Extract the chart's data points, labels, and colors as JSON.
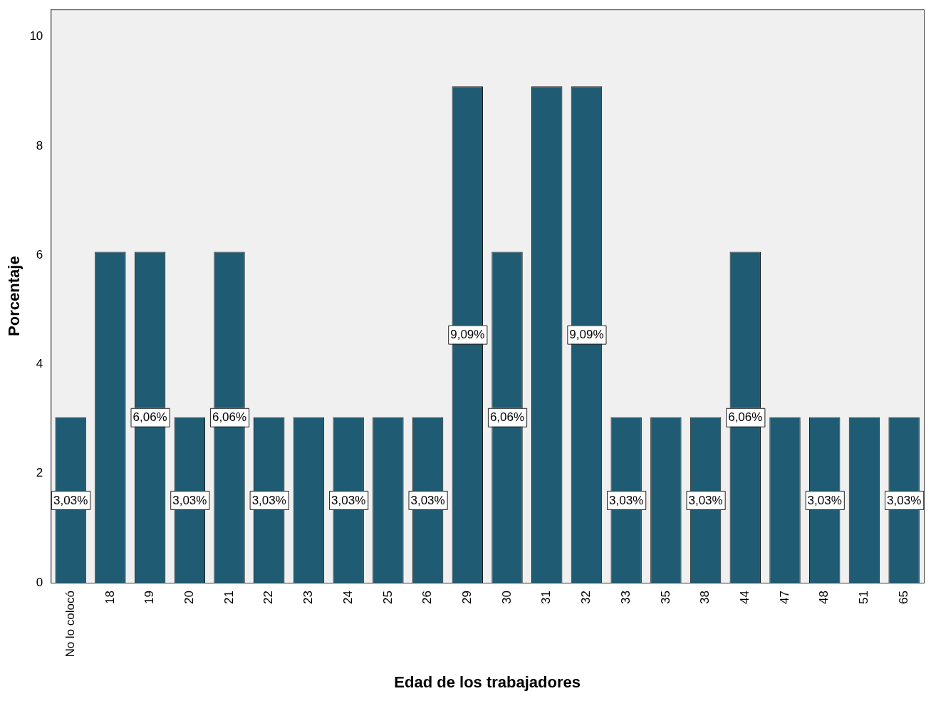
{
  "chart_data": {
    "type": "bar",
    "xlabel": "Edad de los trabajadores",
    "ylabel": "Porcentaje",
    "categories": [
      "No lo colocó",
      "18",
      "19",
      "20",
      "21",
      "22",
      "23",
      "24",
      "25",
      "26",
      "29",
      "30",
      "31",
      "32",
      "33",
      "35",
      "38",
      "44",
      "47",
      "48",
      "51",
      "65"
    ],
    "values": [
      3.03,
      6.06,
      6.06,
      3.03,
      6.06,
      3.03,
      3.03,
      3.03,
      3.03,
      3.03,
      9.09,
      6.06,
      9.09,
      9.09,
      3.03,
      3.03,
      3.03,
      6.06,
      3.03,
      3.03,
      3.03,
      3.03
    ],
    "value_labels": [
      "3,03%",
      null,
      "6,06%",
      "3,03%",
      "6,06%",
      "3,03%",
      null,
      "3,03%",
      null,
      "3,03%",
      "9,09%",
      "6,06%",
      null,
      "9,09%",
      "3,03%",
      null,
      "3,03%",
      "6,06%",
      null,
      "3,03%",
      null,
      "3,03%"
    ],
    "color": "#1f5c73",
    "ylim": [
      0,
      10.5
    ],
    "yticks": [
      0,
      2,
      4,
      6,
      8,
      10
    ],
    "grid": false,
    "legend": false
  }
}
